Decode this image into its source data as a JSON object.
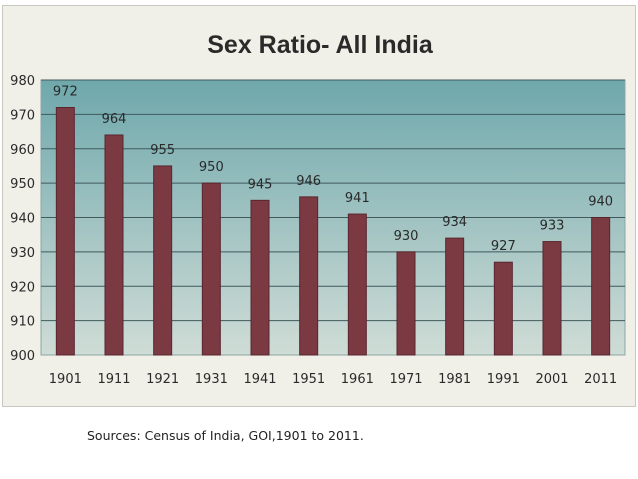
{
  "chart_data": {
    "type": "bar",
    "title": "Sex Ratio- All India",
    "categories": [
      "1901",
      "1911",
      "1921",
      "1931",
      "1941",
      "1951",
      "1961",
      "1971",
      "1981",
      "1991",
      "2001",
      "2011"
    ],
    "values": [
      972,
      964,
      955,
      950,
      945,
      946,
      941,
      930,
      934,
      927,
      933,
      940
    ],
    "xlabel": "",
    "ylabel": "",
    "ylim": [
      900,
      980
    ],
    "yticks": [
      900,
      910,
      920,
      930,
      940,
      950,
      960,
      970,
      980
    ],
    "grid": true,
    "data_labels": true,
    "legend": "none"
  },
  "colors": {
    "bar": "#7b3a42",
    "bar_edge": "#5a2530",
    "plot_top": "#6fa8ac",
    "plot_bottom": "#cfdcd6",
    "grid": "#3f5a5e",
    "frame": "#f1f0e8",
    "text": "#2a2a2a"
  },
  "source": "Sources: Census of India, GOI,1901 to 2011."
}
